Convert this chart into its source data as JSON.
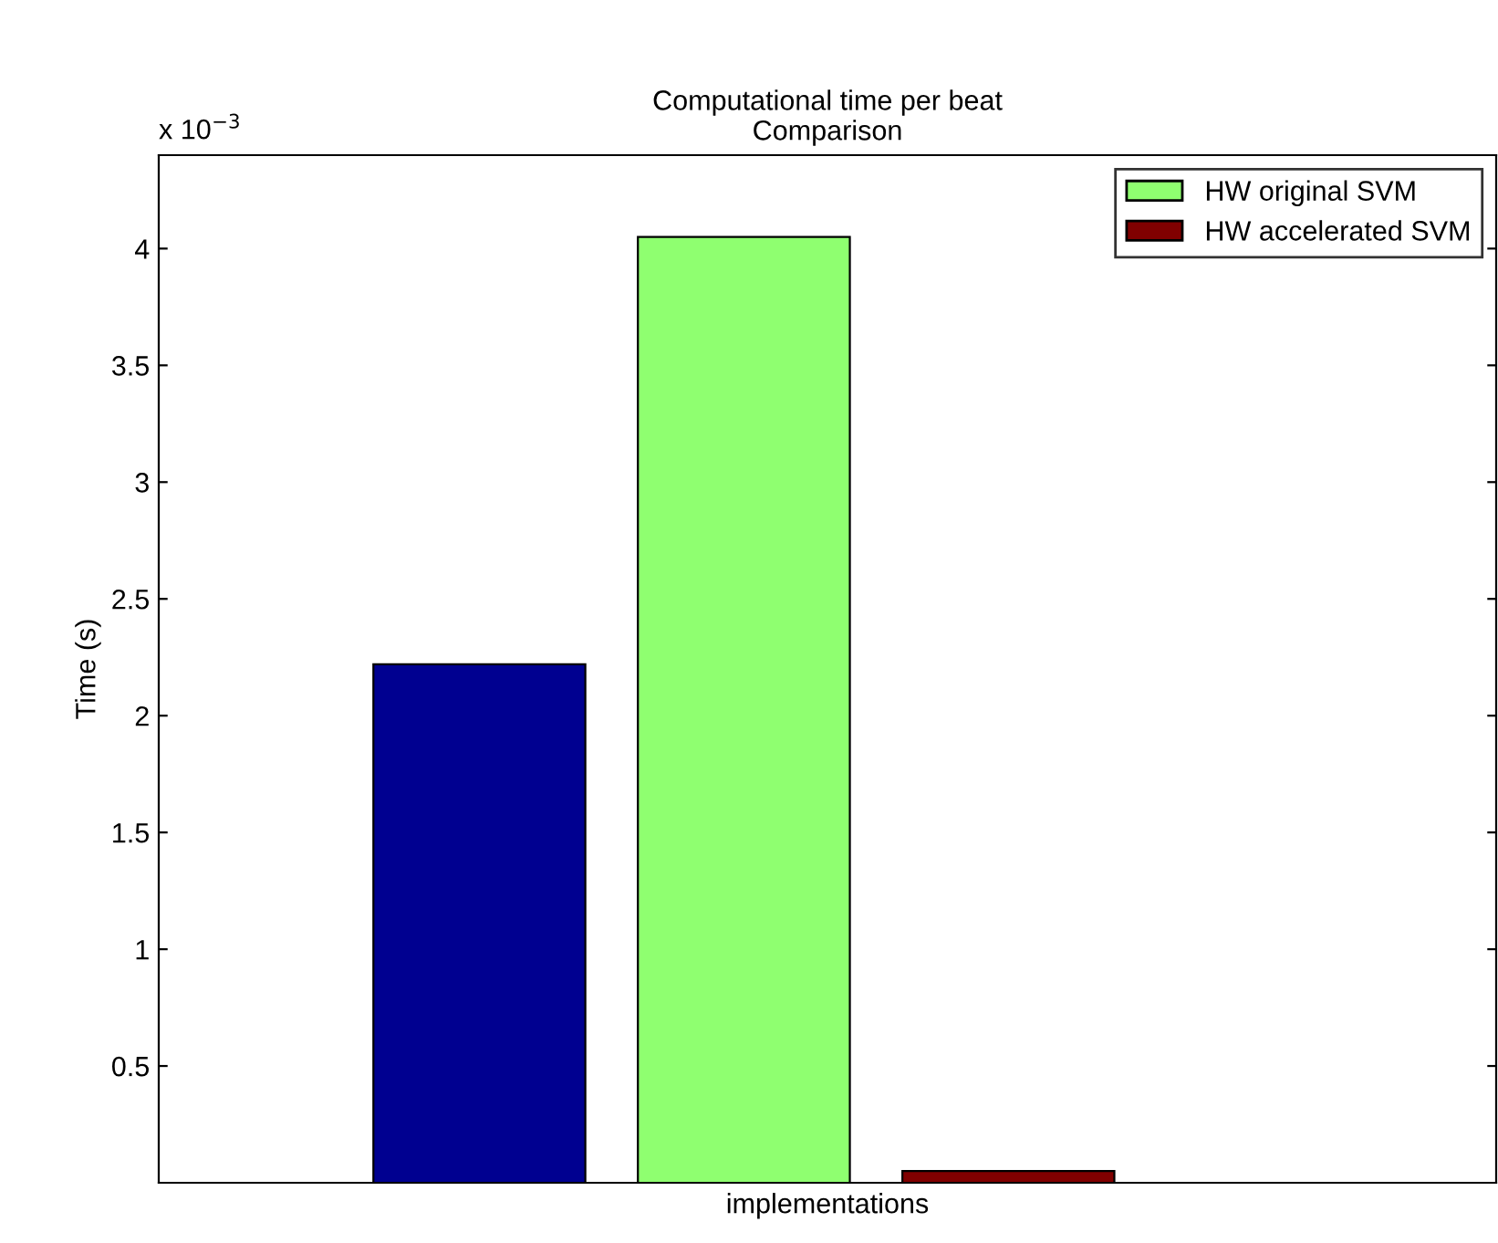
{
  "chart_data": {
    "type": "bar",
    "title": "Computational time per beat",
    "subtitle": "Comparison",
    "xlabel": "implementations",
    "ylabel": "Time (s)",
    "categories": [
      null
    ],
    "series": [
      {
        "color": "#000090",
        "values": [
          2.22
        ]
      },
      {
        "name": "HW original SVM",
        "color": "#8fff70",
        "values": [
          4.05
        ]
      },
      {
        "name": "HW accelerated SVM",
        "color": "#800000",
        "values": [
          0.05
        ]
      }
    ],
    "ylim": [
      0,
      4.4
    ],
    "yticks": [
      0.5,
      1,
      1.5,
      2,
      2.5,
      3,
      3.5,
      4
    ],
    "annotations": [
      "x 10$^{−3}$"
    ],
    "tick_labels": "y",
    "legend": "top right",
    "grid": false
  }
}
